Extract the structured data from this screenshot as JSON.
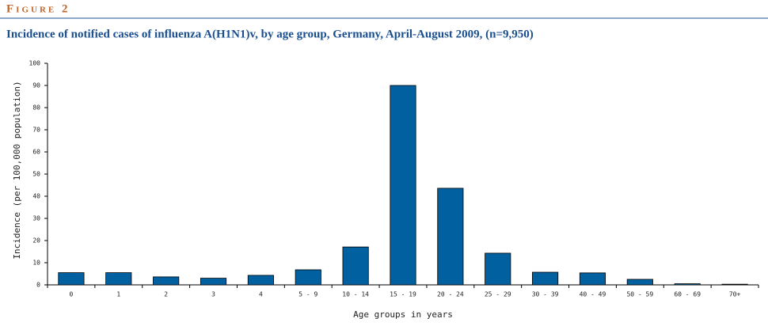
{
  "chart_data": {
    "type": "bar",
    "figure_label": "Figure 2",
    "title": "Incidence of notified cases of influenza A(H1N1)v, by age group, Germany, April-August 2009, (n=9,950)",
    "x_label": "Age groups in years",
    "y_label": "Incidence (per 100,000 population)",
    "categories": [
      "0",
      "1",
      "2",
      "3",
      "4",
      "5 - 9",
      "10 - 14",
      "15 - 19",
      "20 - 24",
      "25 - 29",
      "30 - 39",
      "40 - 49",
      "50 - 59",
      "60 - 69",
      "70+"
    ],
    "values": [
      5.5,
      5.5,
      3.6,
      3.0,
      4.3,
      6.8,
      17.1,
      90,
      43.6,
      14.3,
      5.7,
      5.4,
      2.5,
      0.5,
      0.3
    ],
    "color": "#0060a0",
    "ylim": [
      0,
      100
    ],
    "yticks": [
      0,
      10,
      20,
      30,
      40,
      50,
      60,
      70,
      80,
      90,
      100
    ],
    "grid": false
  }
}
